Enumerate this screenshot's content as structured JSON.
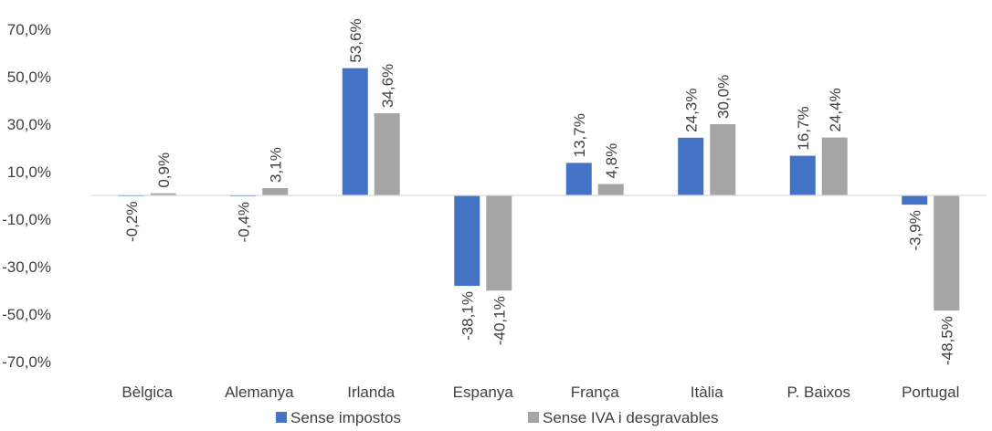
{
  "chart_data": {
    "type": "bar",
    "title": "",
    "xlabel": "",
    "ylabel": "",
    "categories": [
      "Bèlgica",
      "Alemanya",
      "Irlanda",
      "Espanya",
      "França",
      "Itàlia",
      "P. Baixos",
      "Portugal"
    ],
    "series": [
      {
        "name": "Sense impostos",
        "values": [
          -0.2,
          -0.4,
          53.6,
          -38.1,
          13.7,
          24.3,
          16.7,
          -3.9
        ],
        "labels": [
          "-0,2%",
          "-0,4%",
          "53,6%",
          "-38,1%",
          "13,7%",
          "24,3%",
          "16,7%",
          "-3,9%"
        ],
        "color": "#4472C4"
      },
      {
        "name": "Sense IVA i desgravables",
        "values": [
          0.9,
          3.1,
          34.6,
          -40.1,
          4.8,
          30.0,
          24.4,
          -48.5
        ],
        "labels": [
          "0,9%",
          "3,1%",
          "34,6%",
          "-40,1%",
          "4,8%",
          "30,0%",
          "24,4%",
          "-48,5%"
        ],
        "color": "#A5A5A5"
      }
    ],
    "ylim": [
      -70,
      70
    ],
    "yticks": [
      70,
      50,
      30,
      10,
      -10,
      -30,
      -50,
      -70
    ],
    "ytick_labels": [
      "70,0%",
      "50,0%",
      "30,0%",
      "10,0%",
      "-10,0%",
      "-30,0%",
      "-50,0%",
      "-70,0%"
    ],
    "grid": false,
    "legend_position": "bottom"
  }
}
